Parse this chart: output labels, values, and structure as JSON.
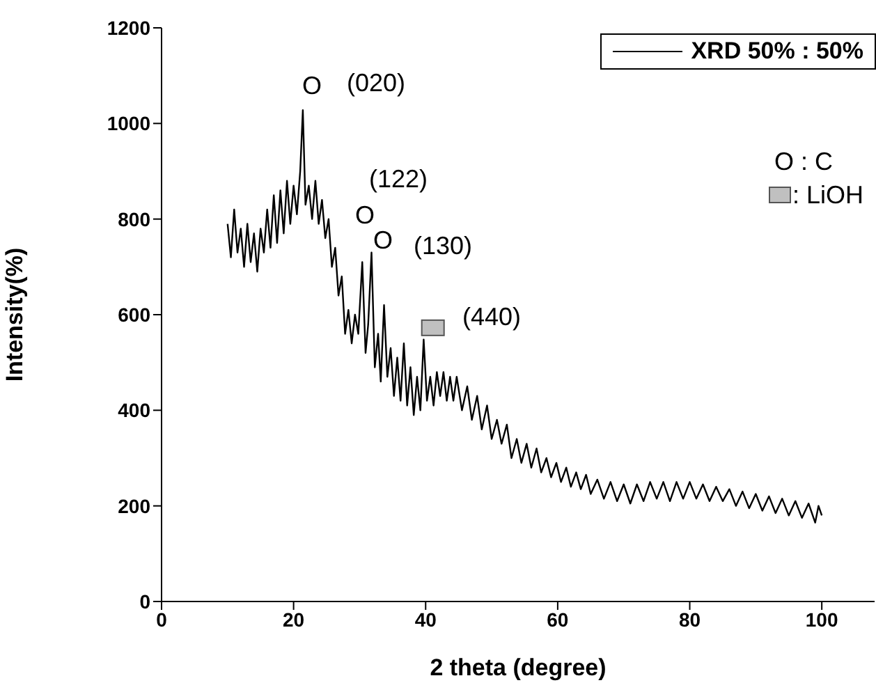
{
  "chart_data": {
    "type": "line",
    "xlabel": "2 theta (degree)",
    "ylabel": "Intensity(%)",
    "xlim": [
      0,
      108
    ],
    "xticks": [
      0,
      20,
      40,
      60,
      80,
      100
    ],
    "ylim": [
      0,
      1200
    ],
    "yticks": [
      0,
      200,
      400,
      600,
      800,
      1000,
      1200
    ],
    "legend": "top right",
    "marker": "none",
    "line_style": "solid",
    "series": [
      {
        "name": "XRD 50% : 50%",
        "color": "#000000",
        "x": [
          10,
          10.5,
          11,
          11.5,
          12,
          12.5,
          13,
          13.5,
          14,
          14.5,
          15,
          15.5,
          16,
          16.5,
          17,
          17.5,
          18,
          18.5,
          19,
          19.5,
          20,
          20.5,
          21,
          21.4,
          21.8,
          22.3,
          22.8,
          23.3,
          23.8,
          24.3,
          24.8,
          25.3,
          25.8,
          26.3,
          26.8,
          27.3,
          27.8,
          28.3,
          28.8,
          29.3,
          29.8,
          30.4,
          30.9,
          31.3,
          31.8,
          32.3,
          32.8,
          33.2,
          33.7,
          34.2,
          34.7,
          35.2,
          35.7,
          36.2,
          36.7,
          37.2,
          37.7,
          38.2,
          38.7,
          39.2,
          39.7,
          40.2,
          40.7,
          41.2,
          41.7,
          42.2,
          42.7,
          43.2,
          43.7,
          44.2,
          44.7,
          45.5,
          46.3,
          47,
          47.8,
          48.5,
          49.3,
          50,
          50.8,
          51.5,
          52.3,
          53,
          53.8,
          54.5,
          55.3,
          56,
          56.8,
          57.5,
          58.3,
          59,
          59.8,
          60.5,
          61.3,
          62,
          62.8,
          63.5,
          64.3,
          65,
          66,
          67,
          68,
          69,
          70,
          71,
          72,
          73,
          74,
          75,
          76,
          77,
          78,
          79,
          80,
          81,
          82,
          83,
          84,
          85,
          86,
          87,
          88,
          89,
          90,
          91,
          92,
          93,
          94,
          95,
          96,
          97,
          98,
          99,
          99.5,
          100
        ],
        "values": [
          790,
          720,
          820,
          730,
          780,
          700,
          790,
          710,
          770,
          690,
          780,
          730,
          820,
          740,
          850,
          750,
          860,
          770,
          880,
          790,
          870,
          810,
          900,
          1028,
          830,
          870,
          800,
          880,
          790,
          840,
          760,
          800,
          700,
          740,
          640,
          680,
          560,
          610,
          540,
          600,
          560,
          710,
          520,
          580,
          730,
          490,
          560,
          460,
          620,
          470,
          530,
          430,
          510,
          420,
          540,
          410,
          490,
          390,
          470,
          400,
          548,
          420,
          470,
          410,
          480,
          430,
          480,
          420,
          470,
          420,
          470,
          400,
          450,
          380,
          430,
          360,
          410,
          340,
          380,
          330,
          370,
          300,
          340,
          290,
          330,
          280,
          320,
          270,
          300,
          260,
          290,
          250,
          280,
          240,
          270,
          235,
          265,
          225,
          255,
          215,
          250,
          210,
          245,
          205,
          245,
          210,
          250,
          215,
          250,
          210,
          250,
          215,
          250,
          215,
          245,
          210,
          240,
          210,
          235,
          200,
          230,
          195,
          225,
          190,
          220,
          185,
          215,
          180,
          210,
          175,
          205,
          165,
          200,
          180
        ]
      }
    ],
    "annotations": [
      "O",
      "(020)",
      "(122)",
      "O",
      "O",
      "(130)",
      "(440)",
      "O : C",
      ": LiOH"
    ]
  }
}
